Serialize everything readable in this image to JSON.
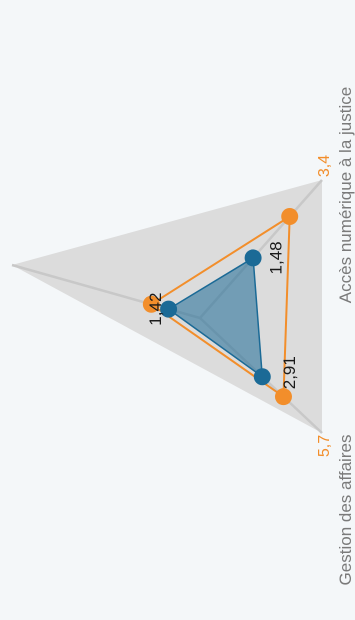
{
  "chart_data": {
    "type": "radar",
    "axes": [
      {
        "label": "",
        "max": ""
      },
      {
        "label": "Accès numérique à la justice",
        "max": "3,4"
      },
      {
        "label": "Gestion des affaires",
        "max": "5,7"
      }
    ],
    "series": [
      {
        "values": [
          2.2,
          2.5,
          3.9
        ],
        "color": "#f28e2b"
      },
      {
        "values": [
          1.42,
          1.48,
          2.91
        ],
        "labels": [
          "1,42",
          "1,48",
          "2,91"
        ],
        "color": "#1b6a96"
      }
    ],
    "scale_max": [
      8.5,
      3.4,
      5.7
    ],
    "background_color": "#dcdcdc",
    "grid": false,
    "legend": "none"
  }
}
